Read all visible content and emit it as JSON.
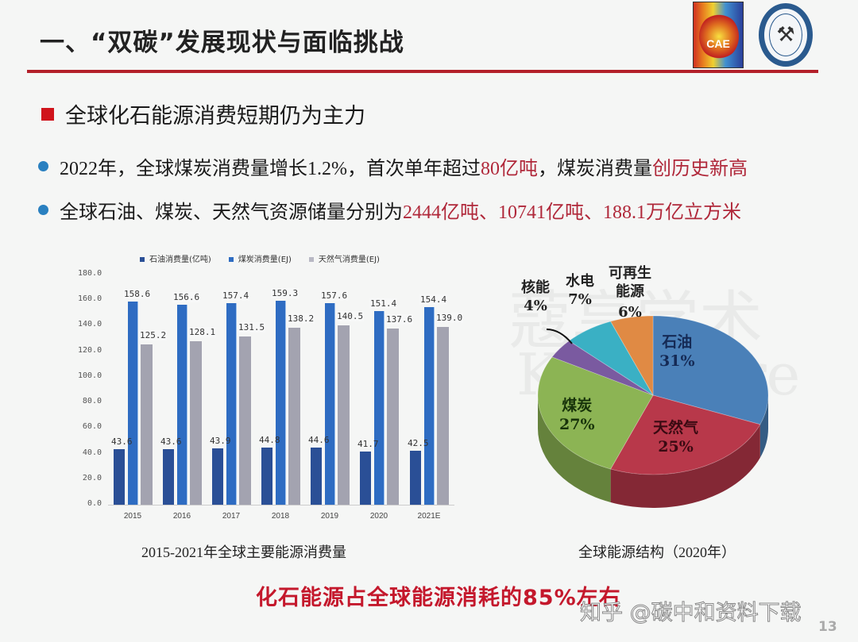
{
  "header": {
    "title": "一、“双碳”发展现状与面临挑战",
    "logo_cae_text": "CAE"
  },
  "section": {
    "heading": "全球化石能源消费短期仍为主力",
    "bullets": [
      {
        "segments": [
          {
            "text": "2022年，全球煤炭消费量增长1.2%，首次单年超过",
            "red": false
          },
          {
            "text": "80亿吨",
            "red": true
          },
          {
            "text": "，煤炭消费量",
            "red": false
          },
          {
            "text": "创历史新高",
            "red": true
          }
        ]
      },
      {
        "segments": [
          {
            "text": "全球石油、煤炭、天然气资源储量分别为",
            "red": false
          },
          {
            "text": "2444亿吨、10741亿吨、188.1万亿立方米",
            "red": true
          }
        ]
      }
    ]
  },
  "chart_data": [
    {
      "type": "bar",
      "title": "2015-2021年全球主要能源消费量",
      "categories": [
        "2015",
        "2016",
        "2017",
        "2018",
        "2019",
        "2020",
        "2021E"
      ],
      "series": [
        {
          "name": "石油消费量(亿吨)",
          "color": "#2a4f96",
          "values": [
            43.6,
            43.6,
            43.9,
            44.8,
            44.6,
            41.7,
            42.5
          ]
        },
        {
          "name": "煤炭消费量(EJ)",
          "color": "#2e6cc2",
          "values": [
            158.6,
            156.6,
            157.4,
            159.3,
            157.6,
            151.4,
            154.4
          ]
        },
        {
          "name": "天然气消费量(EJ)",
          "color": "#a3a3b0",
          "values": [
            125.2,
            128.1,
            131.5,
            138.2,
            140.5,
            137.6,
            139.0
          ]
        }
      ],
      "yticks": [
        "0.0",
        "20.0",
        "40.0",
        "60.0",
        "80.0",
        "100.0",
        "120.0",
        "140.0",
        "160.0",
        "180.0"
      ],
      "ylim": [
        0,
        180
      ],
      "xlabel": "",
      "ylabel": "",
      "legend_position": "top",
      "grid": false
    },
    {
      "type": "pie",
      "title": "全球能源结构（2020年）",
      "slices": [
        {
          "label": "石油",
          "value": 31,
          "display": "31%",
          "color": "#4a80b8"
        },
        {
          "label": "天然气",
          "value": 25,
          "display": "25%",
          "color": "#b8384a"
        },
        {
          "label": "煤炭",
          "value": 27,
          "display": "27%",
          "color": "#8cb454"
        },
        {
          "label": "核能",
          "value": 4,
          "display": "4%",
          "color": "#7a5aa0"
        },
        {
          "label": "水电",
          "value": 7,
          "display": "7%",
          "color": "#3ab0c4"
        },
        {
          "label": "可再生能源",
          "value": 6,
          "display": "6%",
          "color": "#e08a44"
        }
      ],
      "style": "3d"
    }
  ],
  "legend": {
    "items": [
      {
        "label": "石油消费量(亿吨)",
        "color": "#2a4f96"
      },
      {
        "label": "煤炭消费量(EJ)",
        "color": "#2e6cc2"
      },
      {
        "label": "天然气消费量(EJ)",
        "color": "#a3a3b0"
      }
    ]
  },
  "pie_labels": {
    "oil_name": "石油",
    "oil_pct": "31%",
    "gas_name": "天然气",
    "gas_pct": "25%",
    "coal_name": "煤炭",
    "coal_pct": "27%",
    "nuclear_name": "核能",
    "nuclear_pct": "4%",
    "hydro_name": "水电",
    "hydro_pct": "7%",
    "renew_name_1": "可再生",
    "renew_name_2": "能源",
    "renew_pct": "6%"
  },
  "captions": {
    "bar": "2015-2021年全球主要能源消费量",
    "pie": "全球能源结构（2020年）"
  },
  "conclusion": "化石能源占全球能源消耗的85%左右",
  "watermarks": {
    "zhihu": "知乎 @碳中和资料下载",
    "koushare_cn": "蔻享学术",
    "koushare_en": "KouShare"
  },
  "page_number": "13"
}
